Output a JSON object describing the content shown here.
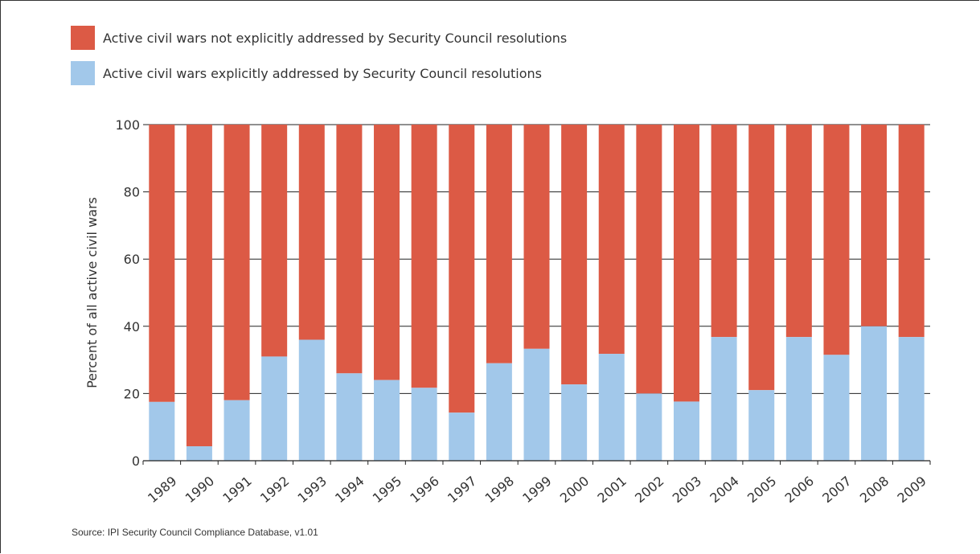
{
  "colors": {
    "not_addressed": "#dc5a45",
    "addressed": "#a2c8ea",
    "grid": "#222222",
    "text": "#333333"
  },
  "legend": [
    {
      "label": "Active civil wars not explicitly addressed by Security Council resolutions",
      "color": "#dc5a45"
    },
    {
      "label": "Active civil wars explicitly addressed by Security Council resolutions",
      "color": "#a2c8ea"
    }
  ],
  "source": "Source: IPI Security Council Compliance Database, v1.01",
  "chart_data": {
    "type": "bar",
    "stacked": true,
    "categories": [
      "1989",
      "1990",
      "1991",
      "1992",
      "1993",
      "1994",
      "1995",
      "1996",
      "1997",
      "1998",
      "1999",
      "2000",
      "2001",
      "2002",
      "2003",
      "2004",
      "2005",
      "2006",
      "2007",
      "2008",
      "2009"
    ],
    "series": [
      {
        "name": "Active civil wars explicitly addressed by Security Council resolutions",
        "values": [
          17.5,
          4.3,
          18,
          31,
          36,
          26,
          24,
          21.7,
          14.3,
          29,
          33.3,
          22.7,
          31.8,
          20,
          17.6,
          36.8,
          21,
          36.8,
          31.5,
          40,
          36.8
        ]
      },
      {
        "name": "Active civil wars not explicitly addressed by Security Council resolutions",
        "values": [
          82.5,
          95.7,
          82,
          69,
          64,
          74,
          76,
          78.3,
          85.7,
          71,
          66.7,
          77.3,
          68.2,
          80,
          82.4,
          63.2,
          79,
          63.2,
          68.5,
          60,
          63.2
        ]
      }
    ],
    "ylabel": "Percent of all active civil wars",
    "xlabel": "",
    "ylim": [
      0,
      100
    ],
    "yticks": [
      0,
      20,
      40,
      60,
      80,
      100
    ],
    "grid": true,
    "legend_position": "top-left"
  }
}
